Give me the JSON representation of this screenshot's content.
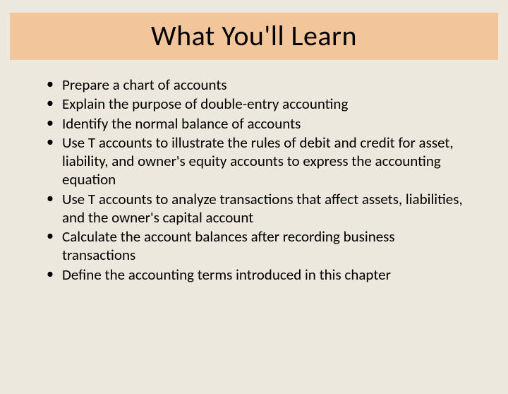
{
  "slide": {
    "title": "What You'll Learn",
    "bullets": [
      "Prepare a chart of accounts",
      "Explain the purpose of double-entry accounting",
      "Identify the normal balance of accounts",
      "Use T accounts to illustrate the rules of debit and credit for asset, liability, and owner's equity accounts to express the accounting equation",
      "Use T accounts to analyze transactions that affect assets, liabilities, and the owner's capital account",
      "Calculate the account balances after recording business transactions",
      "Define the accounting terms introduced in this chapter"
    ],
    "colors": {
      "background": "#ece8dd",
      "title_band": "#f3c59a",
      "text": "#000000"
    },
    "typography": {
      "title_fontsize": 40,
      "title_weight": 400,
      "body_fontsize": 21,
      "font_family": "Calibri"
    }
  }
}
